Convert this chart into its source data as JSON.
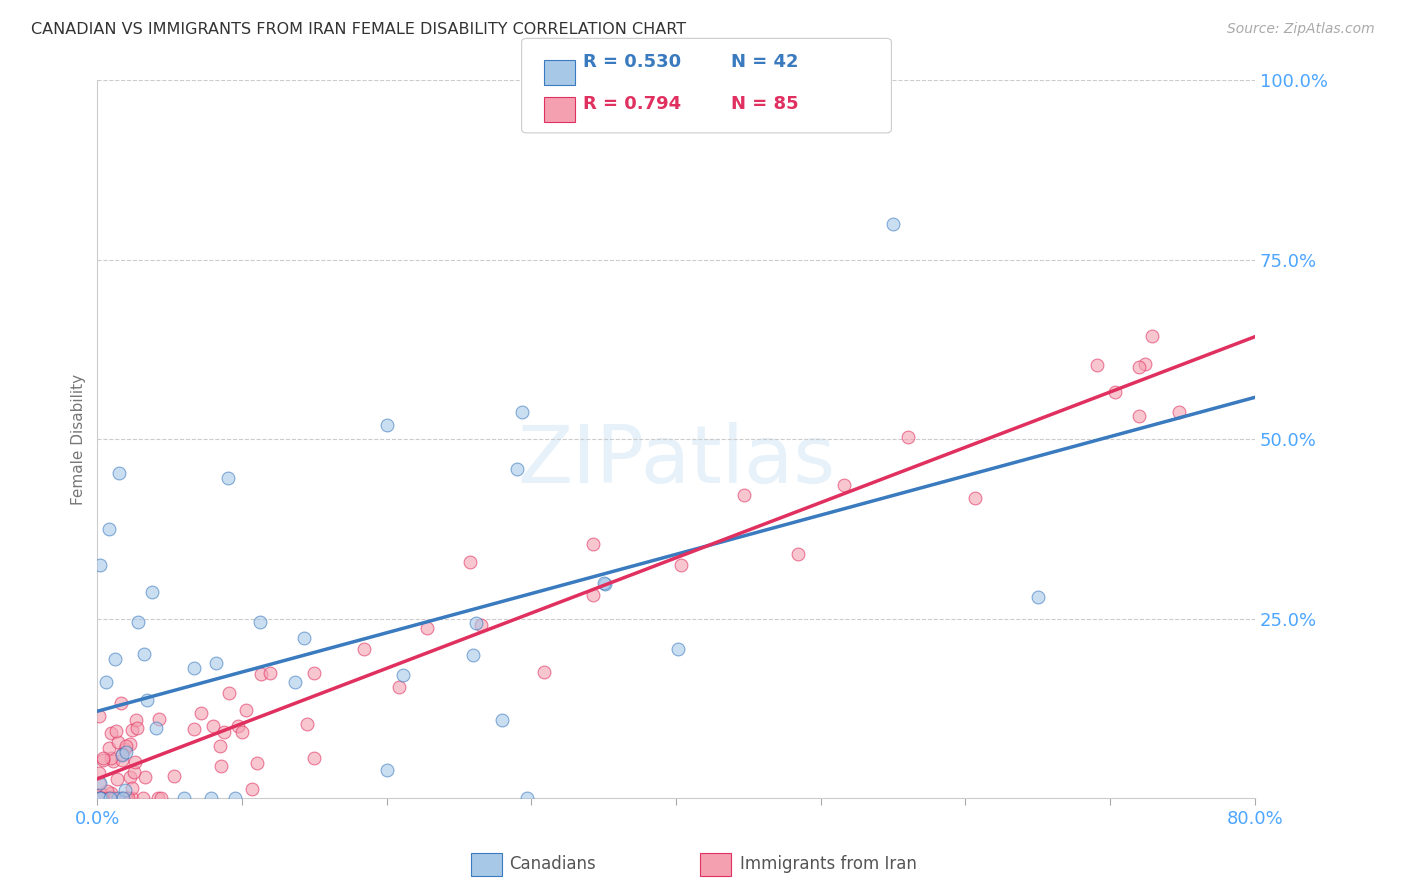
{
  "title": "CANADIAN VS IMMIGRANTS FROM IRAN FEMALE DISABILITY CORRELATION CHART",
  "source": "Source: ZipAtlas.com",
  "ylabel": "Female Disability",
  "legend_blue_r": "R = 0.530",
  "legend_blue_n": "N = 42",
  "legend_pink_r": "R = 0.794",
  "legend_pink_n": "N = 85",
  "blue_color": "#a8c8e8",
  "pink_color": "#f4a0b0",
  "blue_line_color": "#3a7abf",
  "pink_line_color": "#e03060",
  "background_color": "#ffffff",
  "grid_color": "#cccccc",
  "title_color": "#333333",
  "axis_label_color": "#4da6ff",
  "xlim": [
    0,
    80
  ],
  "ylim": [
    0,
    100
  ],
  "watermark": "ZIPatlas"
}
